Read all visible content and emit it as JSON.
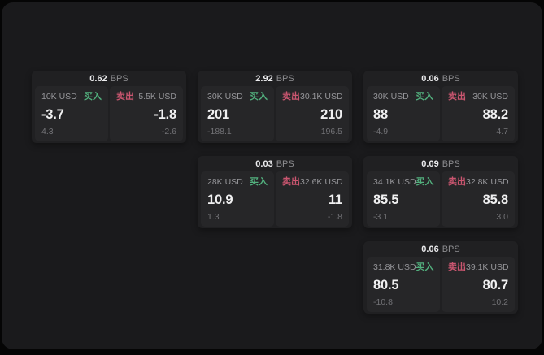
{
  "labels": {
    "bps_unit": "BPS",
    "buy": "买入",
    "sell": "卖出"
  },
  "colors": {
    "buy_green": "#52b17e",
    "sell_red": "#cb5670",
    "window_bg": "#1a1a1c",
    "card_bg": "#202022",
    "panel_bg": "#262628"
  },
  "cards": [
    {
      "bps": "0.62",
      "buy": {
        "size": "10K USD",
        "price": "-3.7",
        "change": "4.3"
      },
      "sell": {
        "size": "5.5K USD",
        "price": "-1.8",
        "change": "-2.6"
      }
    },
    {
      "bps": "2.92",
      "buy": {
        "size": "30K USD",
        "price": "201",
        "change": "-188.1"
      },
      "sell": {
        "size": "30.1K USD",
        "price": "210",
        "change": "196.5"
      }
    },
    {
      "bps": "0.06",
      "buy": {
        "size": "30K USD",
        "price": "88",
        "change": "-4.9"
      },
      "sell": {
        "size": "30K USD",
        "price": "88.2",
        "change": "4.7"
      }
    },
    {
      "bps": "0.03",
      "buy": {
        "size": "28K USD",
        "price": "10.9",
        "change": "1.3"
      },
      "sell": {
        "size": "32.6K USD",
        "price": "11",
        "change": "-1.8"
      }
    },
    {
      "bps": "0.09",
      "buy": {
        "size": "34.1K USD",
        "price": "85.5",
        "change": "-3.1"
      },
      "sell": {
        "size": "32.8K USD",
        "price": "85.8",
        "change": "3.0"
      }
    },
    {
      "bps": "0.06",
      "buy": {
        "size": "31.8K USD",
        "price": "80.5",
        "change": "-10.8"
      },
      "sell": {
        "size": "39.1K USD",
        "price": "80.7",
        "change": "10.2"
      }
    }
  ]
}
